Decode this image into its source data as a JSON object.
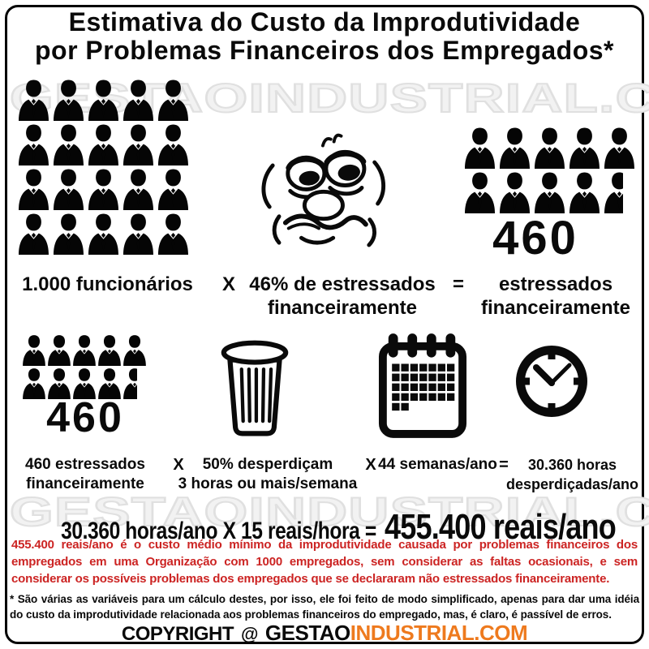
{
  "colors": {
    "ink": "#0a0a0a",
    "red": "#cc2423",
    "orange": "#ee7a1e",
    "watermark": "#e0e0e0"
  },
  "title": {
    "line1": "Estimativa do Custo da Improdutividade",
    "line2": "por Problemas Financeiros dos Empregados*"
  },
  "watermark": "GESTAOINDUSTRIAL.COM",
  "step1": {
    "group_label": "1.000 funcionários",
    "op_multiply": "X",
    "factor_line1": "46% de estressados",
    "factor_line2": "financeiramente",
    "op_equals": "=",
    "result_number": "460",
    "result_line1": "estressados",
    "result_line2": "financeiramente"
  },
  "step2": {
    "group_number": "460",
    "label1_line1": "460 estressados",
    "label1_line2": "financeiramente",
    "op1": "X",
    "label2_line1": "50% desperdiçam",
    "label2_line2": "3 horas ou mais/semana",
    "op2": "X",
    "label3": "44 semanas/ano",
    "op3": "=",
    "label4_line1": "30.360 horas",
    "label4_line2": "desperdiçadas/ano"
  },
  "equation": {
    "left": "30.360 horas/ano X 15 reais/hora =",
    "result": "455.400 reais/ano"
  },
  "red_note": "455.400 reais/ano é o custo médio mínimo da improdutividade causada por problemas financeiros dos empregados em uma Organização com 1000 empregados, sem considerar as faltas ocasionais, e sem considerar os possíveis problemas dos empregados que se declararam não estressados financeiramente.",
  "footnote": "* São várias as variáveis para um cálculo destes, por isso, ele foi feito de modo simplificado, apenas para dar uma idéia do custo da improdutividade relacionada aos problemas financeiros do empregado, mas, é claro, é passível de erros.",
  "copyright": {
    "word": "COPYRIGHT",
    "at": "@",
    "brand_black": "GESTAO",
    "brand_orange": "INDUSTRIAL.COM"
  },
  "icons": {
    "person": "person-icon",
    "stressed_face": "stressed-face-icon",
    "trash": "trash-can-icon",
    "calendar": "calendar-icon",
    "clock": "clock-icon"
  },
  "figures": {
    "employees_grid": {
      "rows": 4,
      "cols": 5,
      "partial_last": false
    },
    "stressed_grid_large": {
      "rows": 2,
      "cols": 5,
      "partial_last": true
    },
    "stressed_grid_small": {
      "rows": 2,
      "cols": 5,
      "partial_last": true
    },
    "calendar_grid": {
      "rows": 4,
      "cols": 7,
      "extra": 2
    }
  }
}
